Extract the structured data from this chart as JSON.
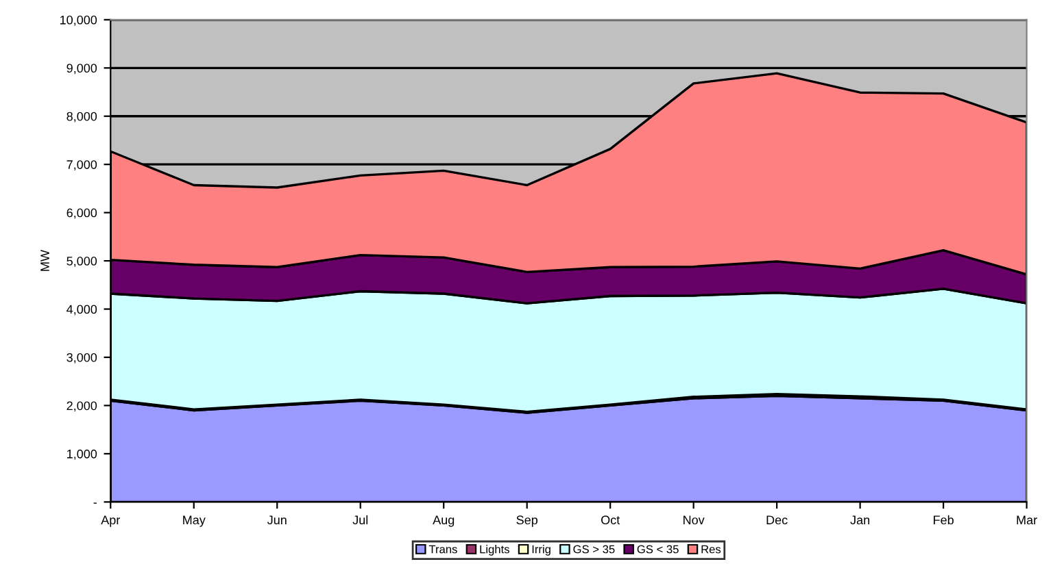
{
  "chart_data": {
    "type": "area",
    "stacked": true,
    "ylabel": "MW",
    "categories": [
      "Apr",
      "May",
      "Jun",
      "Jul",
      "Aug",
      "Sep",
      "Oct",
      "Nov",
      "Dec",
      "Jan",
      "Feb",
      "Mar"
    ],
    "series": [
      {
        "name": "Trans",
        "color": "#9999ff",
        "values": [
          2100,
          1900,
          2000,
          2100,
          2000,
          1850,
          2000,
          2150,
          2200,
          2150,
          2100,
          1900
        ]
      },
      {
        "name": "Lights",
        "color": "#993366",
        "values": [
          20,
          20,
          20,
          20,
          20,
          20,
          20,
          30,
          40,
          40,
          20,
          20
        ]
      },
      {
        "name": "Irrig",
        "color": "#ffffcc",
        "values": [
          null,
          null,
          null,
          null,
          null,
          null,
          null,
          null,
          null,
          null,
          null,
          null
        ]
      },
      {
        "name": "GS > 35",
        "color": "#ccffff",
        "values": [
          2200,
          2300,
          2150,
          2250,
          2300,
          2250,
          2250,
          2100,
          2100,
          2050,
          2300,
          2200
        ]
      },
      {
        "name": "GS < 35",
        "color": "#660066",
        "values": [
          700,
          700,
          700,
          750,
          750,
          650,
          600,
          600,
          650,
          600,
          800,
          600
        ]
      },
      {
        "name": "Res",
        "color": "#ff8080",
        "values": [
          2250,
          1650,
          1650,
          1650,
          1800,
          1800,
          2450,
          3800,
          3900,
          3650,
          3250,
          3150
        ]
      }
    ],
    "ylim": [
      0,
      10000
    ],
    "yticks": [
      {
        "value": 0,
        "label": "-"
      },
      {
        "value": 1000,
        "label": "1,000"
      },
      {
        "value": 2000,
        "label": "2,000"
      },
      {
        "value": 3000,
        "label": "3,000"
      },
      {
        "value": 4000,
        "label": "4,000"
      },
      {
        "value": 5000,
        "label": "5,000"
      },
      {
        "value": 6000,
        "label": "6,000"
      },
      {
        "value": 7000,
        "label": "7,000"
      },
      {
        "value": 8000,
        "label": "8,000"
      },
      {
        "value": 9000,
        "label": "9,000"
      },
      {
        "value": 10000,
        "label": "10,000"
      }
    ],
    "grid": "y",
    "legend": "bottom"
  }
}
